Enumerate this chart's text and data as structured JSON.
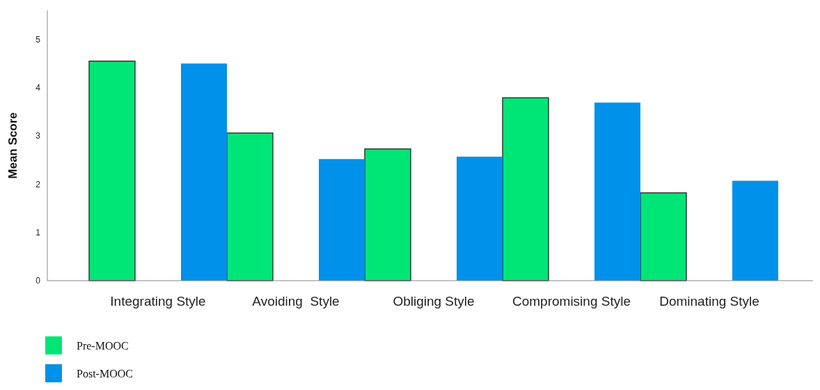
{
  "chart_data": {
    "type": "bar",
    "ylabel": "Mean Score",
    "categories": [
      "Integrating Style",
      "Avoiding  Style",
      "Obliging Style",
      "Compromising Style",
      "Dominating Style"
    ],
    "series": [
      {
        "name": "Pre-MOOC",
        "color": "#00e676",
        "values": [
          4.55,
          3.06,
          2.73,
          3.79,
          1.82
        ]
      },
      {
        "name": "Post-MOOC",
        "color": "#0091ea",
        "values": [
          4.5,
          2.52,
          2.57,
          3.69,
          2.07
        ]
      }
    ],
    "ylim": [
      0,
      5.6
    ],
    "yticks": [
      0,
      1,
      2,
      3,
      4,
      5
    ],
    "grid": false,
    "legend": "bottom left"
  }
}
